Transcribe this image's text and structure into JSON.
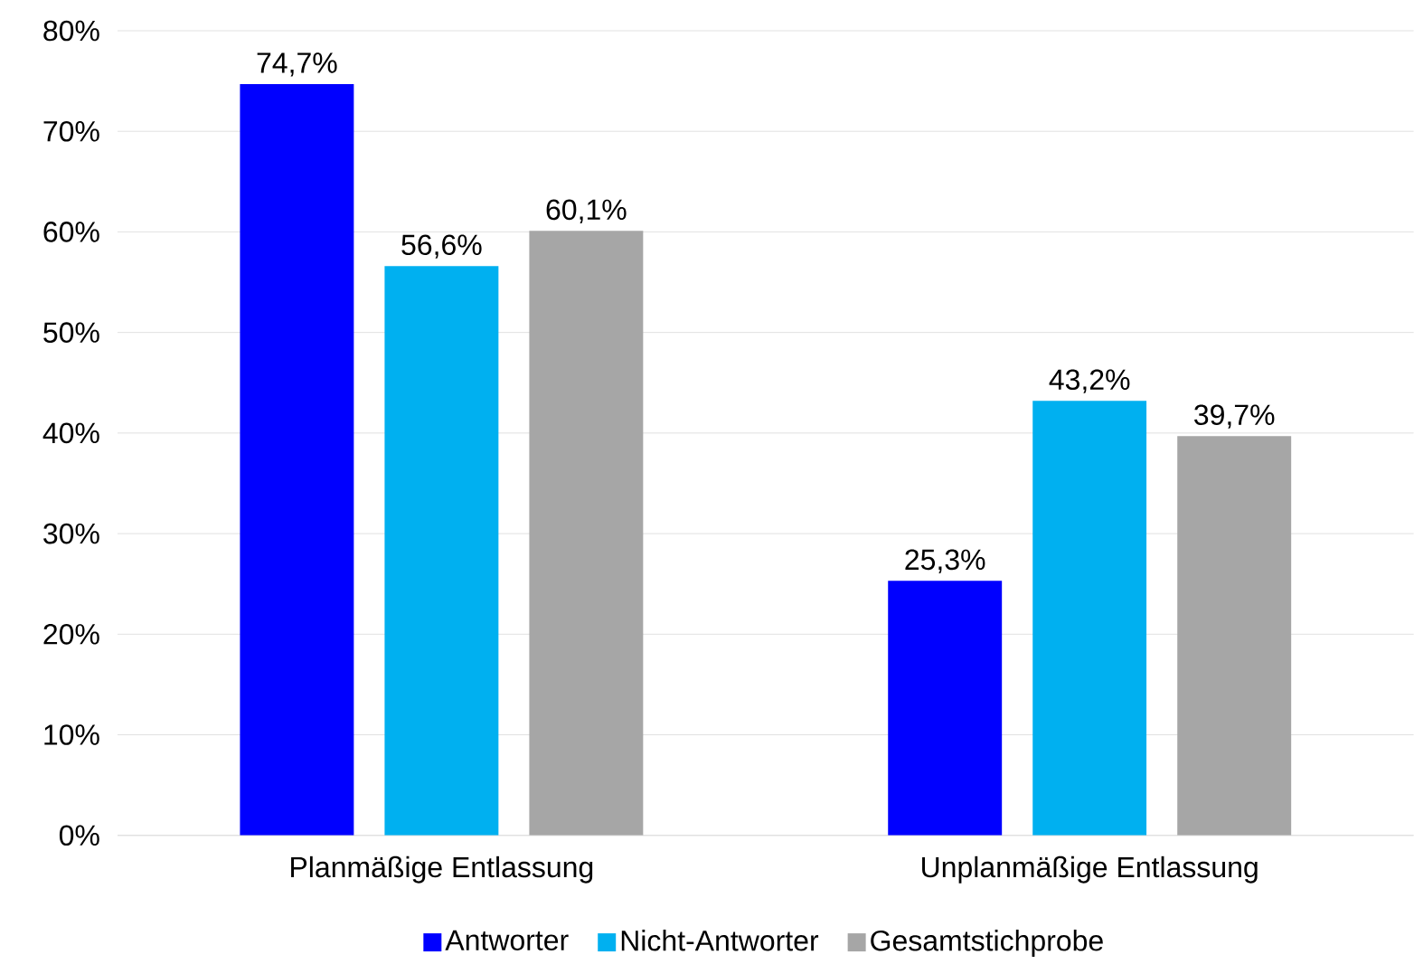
{
  "chart_data": {
    "type": "bar",
    "categories": [
      "Planmäßige Entlassung",
      "Unplanmäßige Entlassung"
    ],
    "series": [
      {
        "name": "Antworter",
        "color": "#0000ff",
        "values": [
          74.7,
          25.3
        ],
        "value_labels": [
          "74,7%",
          "25,3%"
        ]
      },
      {
        "name": "Nicht-Antworter",
        "color": "#00b0f0",
        "values": [
          56.6,
          43.2
        ],
        "value_labels": [
          "56,6%",
          "43,2%"
        ]
      },
      {
        "name": "Gesamtstichprobe",
        "color": "#a6a6a6",
        "values": [
          60.1,
          39.7
        ],
        "value_labels": [
          "60,1%",
          "39,7%"
        ]
      }
    ],
    "ylim": [
      0,
      80
    ],
    "yticks": [
      {
        "value": 0,
        "label": "0%"
      },
      {
        "value": 10,
        "label": "10%"
      },
      {
        "value": 20,
        "label": "20%"
      },
      {
        "value": 30,
        "label": "30%"
      },
      {
        "value": 40,
        "label": "40%"
      },
      {
        "value": 50,
        "label": "50%"
      },
      {
        "value": 60,
        "label": "60%"
      },
      {
        "value": 70,
        "label": "70%"
      },
      {
        "value": 80,
        "label": "80%"
      }
    ],
    "grid": "y",
    "legend": "bottom"
  }
}
